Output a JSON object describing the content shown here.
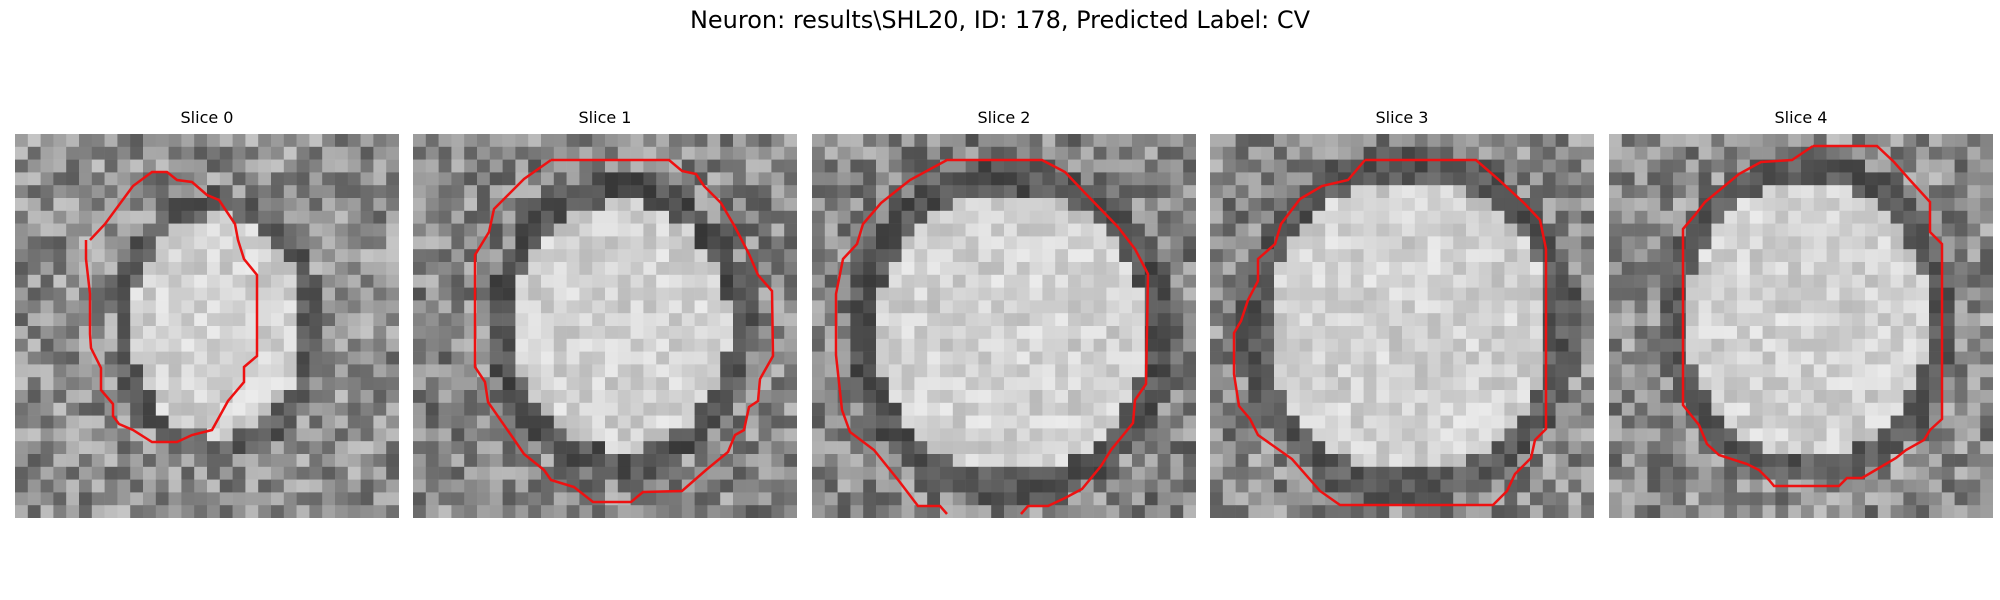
{
  "figure": {
    "title": "Neuron: results\\SHL20, ID: 178, Predicted Label: CV"
  },
  "slices": [
    {
      "title": "Slice 0"
    },
    {
      "title": "Slice 1"
    },
    {
      "title": "Slice 2"
    },
    {
      "title": "Slice 3"
    },
    {
      "title": "Slice 4"
    }
  ],
  "colors": {
    "contour": "#ee1111",
    "background": "#ffffff"
  }
}
